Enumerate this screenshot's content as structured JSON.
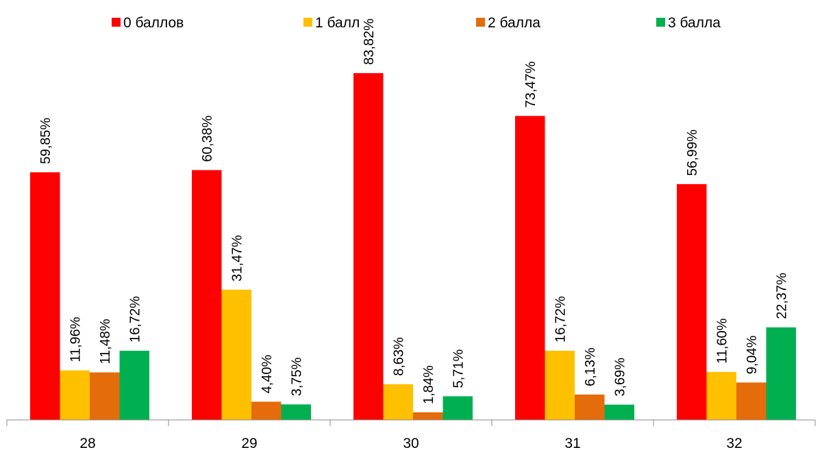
{
  "chart_data": {
    "type": "bar",
    "categories": [
      "28",
      "29",
      "30",
      "31",
      "32"
    ],
    "series": [
      {
        "name": "0 баллов",
        "color": "#ff0000",
        "values": [
          59.85,
          60.38,
          83.82,
          73.47,
          56.99
        ],
        "labels": [
          "59,85%",
          "60,38%",
          "83,82%",
          "73,47%",
          "56,99%"
        ]
      },
      {
        "name": "1 балл",
        "color": "#ffc000",
        "values": [
          11.96,
          31.47,
          8.63,
          16.72,
          11.6
        ],
        "labels": [
          "11,96%",
          "31,47%",
          "8,63%",
          "16,72%",
          "11,60%"
        ]
      },
      {
        "name": "2 балла",
        "color": "#e46c0a",
        "values": [
          11.48,
          4.4,
          1.84,
          6.13,
          9.04
        ],
        "labels": [
          "11,48%",
          "4,40%",
          "1,84%",
          "6,13%",
          "9,04%"
        ]
      },
      {
        "name": "3 балла",
        "color": "#00b050",
        "values": [
          16.72,
          3.75,
          5.71,
          3.69,
          22.37
        ],
        "labels": [
          "16,72%",
          "3,75%",
          "5,71%",
          "3,69%",
          "22,37%"
        ]
      }
    ],
    "legend_position": "top",
    "grid": false
  }
}
